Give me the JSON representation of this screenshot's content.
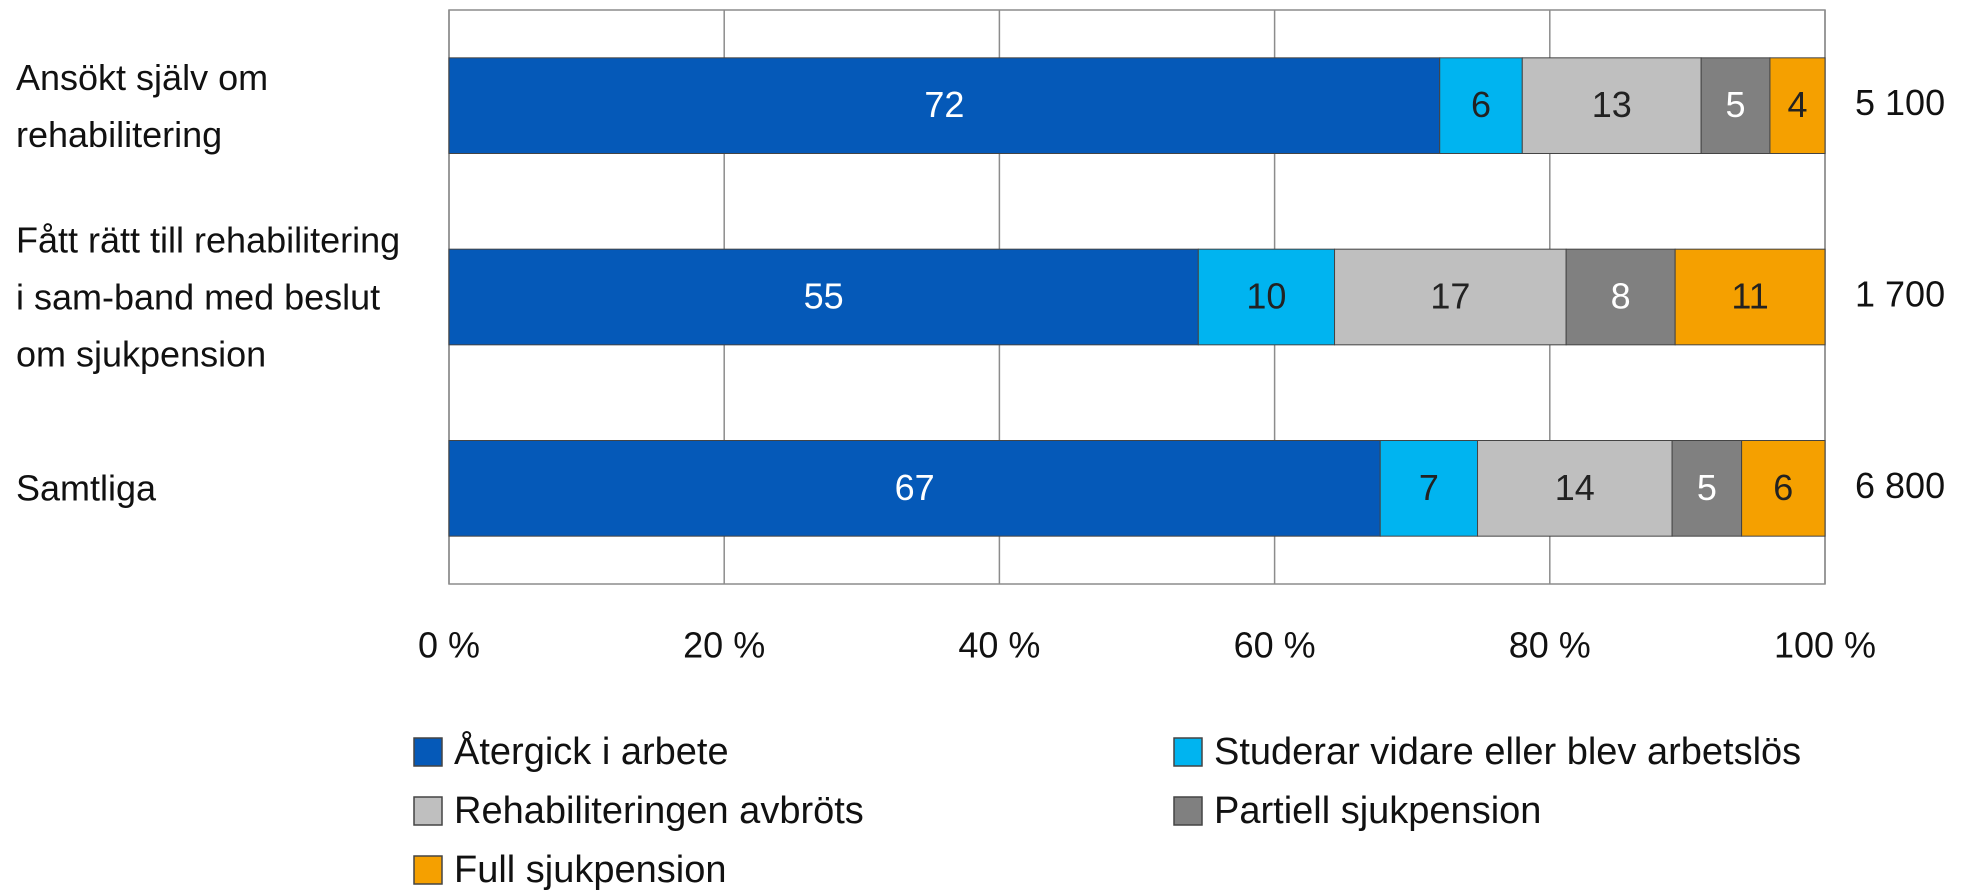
{
  "chart_data": {
    "type": "bar",
    "orientation": "horizontal",
    "stacked": "percent",
    "categories": [
      "Ansökt själv om rehabilitering",
      "Fått rätt till rehabilitering i sam-band med beslut om sjukpension",
      "Samtliga"
    ],
    "series": [
      {
        "name": "Återgick i arbete",
        "color": "#0559b8",
        "label_color": "#ffffff",
        "values": [
          72,
          55,
          67
        ]
      },
      {
        "name": "Studerar vidare eller blev arbetslös",
        "color": "#00b4f0",
        "label_color": "#222222",
        "values": [
          6,
          10,
          7
        ]
      },
      {
        "name": "Rehabiliteringen avbröts",
        "color": "#bfbfbf",
        "label_color": "#222222",
        "values": [
          13,
          17,
          14
        ]
      },
      {
        "name": "Partiell sjukpension",
        "color": "#808080",
        "label_color": "#ffffff",
        "values": [
          5,
          8,
          5
        ]
      },
      {
        "name": "Full sjukpension",
        "color": "#f5a000",
        "label_color": "#222222",
        "values": [
          4,
          11,
          6
        ]
      }
    ],
    "row_totals": [
      "5 100",
      "1 700",
      "6 800"
    ],
    "xlim": [
      0,
      100
    ],
    "xticks": [
      {
        "value": 0,
        "label": "0 %"
      },
      {
        "value": 20,
        "label": "20 %"
      },
      {
        "value": 40,
        "label": "40 %"
      },
      {
        "value": 60,
        "label": "60 %"
      },
      {
        "value": 80,
        "label": "80 %"
      },
      {
        "value": 100,
        "label": "100 %"
      }
    ],
    "grid": true,
    "legend": "bottom"
  }
}
